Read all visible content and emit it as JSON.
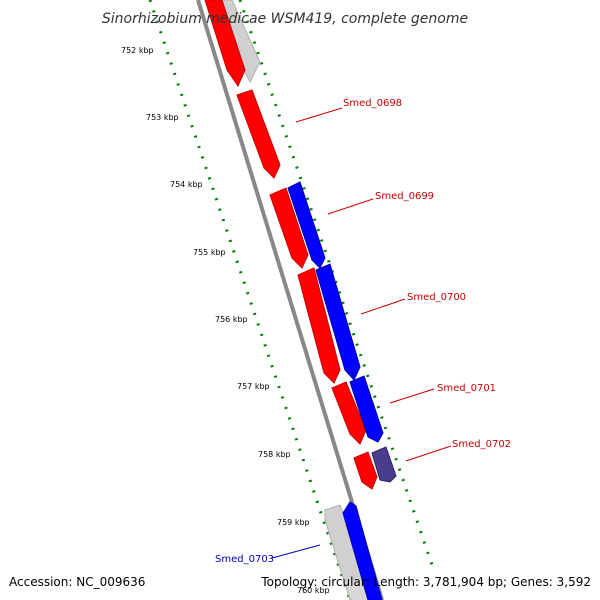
{
  "title": "Sinorhizobium medicae WSM419, complete genome",
  "footer": {
    "accession": "Accession: NC_009636",
    "summary": "Topology: circular; Length: 3,781,904 bp; Genes: 3,592"
  },
  "colors": {
    "forward_gene": "#ff0000",
    "reverse_gene": "#0000ff",
    "neighbor_gene": "#c8c8c8",
    "tick": "#008000",
    "backbone": "#888888",
    "label_forward": "#cc0000",
    "label_reverse": "#0000cc",
    "purple_gene": "#4b3c8c"
  },
  "ticks": [
    {
      "label": "752 kbp"
    },
    {
      "label": "753 kbp"
    },
    {
      "label": "754 kbp"
    },
    {
      "label": "755 kbp"
    },
    {
      "label": "756 kbp"
    },
    {
      "label": "757 kbp"
    },
    {
      "label": "758 kbp"
    },
    {
      "label": "759 kbp"
    },
    {
      "label": "760 kbp"
    }
  ],
  "gene_labels": [
    {
      "name": "Smed_0698",
      "strand": "forward"
    },
    {
      "name": "Smed_0699",
      "strand": "forward"
    },
    {
      "name": "Smed_0700",
      "strand": "forward"
    },
    {
      "name": "Smed_0701",
      "strand": "forward"
    },
    {
      "name": "Smed_0702",
      "strand": "forward"
    },
    {
      "name": "Smed_0703",
      "strand": "reverse"
    }
  ]
}
